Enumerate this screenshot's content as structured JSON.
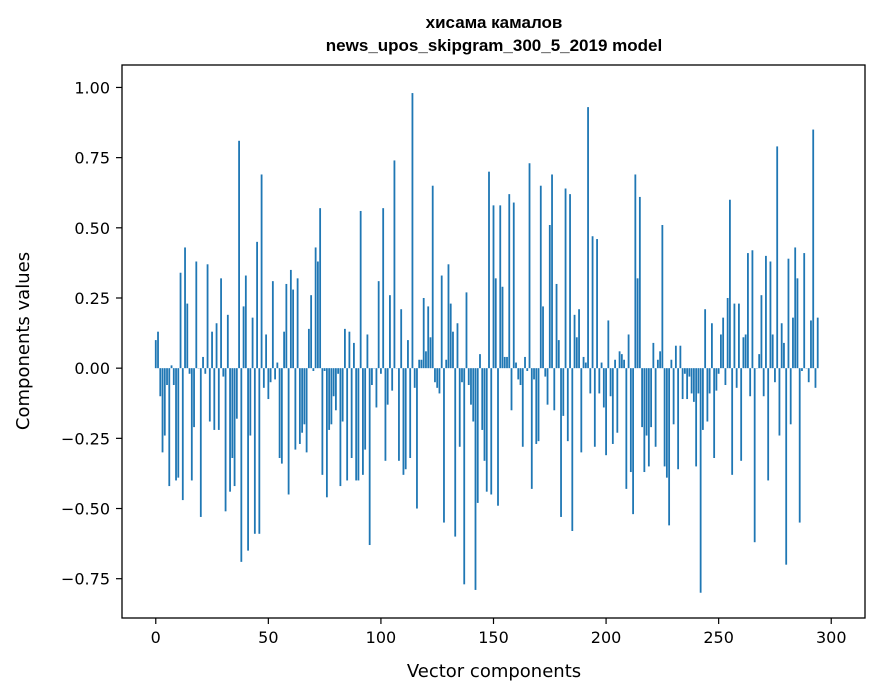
{
  "chart_data": {
    "type": "bar",
    "title": "хисама камалов",
    "subtitle": "news_upos_skipgram_300_5_2019 model",
    "xlabel": "Vector components",
    "ylabel": "Components values",
    "xlim": [
      -15,
      315
    ],
    "ylim": [
      -0.89,
      1.08
    ],
    "xticks": [
      0,
      50,
      100,
      150,
      200,
      250,
      300
    ],
    "xtick_labels": [
      "0",
      "50",
      "100",
      "150",
      "200",
      "250",
      "300"
    ],
    "yticks": [
      -0.75,
      -0.5,
      -0.25,
      0.0,
      0.25,
      0.5,
      0.75,
      1.0
    ],
    "ytick_labels": [
      "−0.75",
      "−0.50",
      "−0.25",
      "0.00",
      "0.25",
      "0.50",
      "0.75",
      "1.00"
    ],
    "grid": false,
    "bar_color": "#1f77b4",
    "x_start": 0,
    "values": [
      0.1,
      0.13,
      -0.1,
      -0.3,
      -0.24,
      -0.06,
      -0.42,
      0.01,
      -0.06,
      -0.4,
      -0.39,
      0.34,
      -0.47,
      0.43,
      0.23,
      -0.02,
      -0.4,
      -0.21,
      0.38,
      0.0,
      -0.53,
      0.04,
      -0.02,
      0.37,
      -0.19,
      0.13,
      -0.22,
      0.16,
      -0.22,
      0.32,
      -0.03,
      -0.51,
      0.19,
      -0.44,
      -0.32,
      -0.42,
      -0.18,
      0.81,
      -0.69,
      0.22,
      0.33,
      -0.65,
      -0.24,
      0.18,
      -0.59,
      0.45,
      -0.59,
      0.69,
      -0.07,
      0.12,
      -0.11,
      -0.05,
      0.31,
      -0.04,
      0.02,
      -0.32,
      -0.34,
      0.13,
      0.3,
      -0.45,
      0.35,
      0.28,
      -0.29,
      0.32,
      -0.27,
      -0.23,
      -0.2,
      -0.3,
      0.14,
      0.26,
      -0.01,
      0.43,
      0.38,
      0.57,
      -0.38,
      -0.01,
      -0.46,
      -0.22,
      -0.2,
      -0.1,
      -0.15,
      -0.02,
      -0.42,
      -0.19,
      0.14,
      -0.4,
      0.13,
      -0.32,
      0.09,
      -0.4,
      -0.4,
      0.56,
      -0.38,
      -0.29,
      0.12,
      -0.63,
      -0.06,
      0.0,
      -0.14,
      0.31,
      -0.02,
      0.57,
      -0.33,
      -0.13,
      0.26,
      -0.08,
      0.74,
      0.0,
      -0.33,
      0.21,
      -0.38,
      -0.36,
      0.1,
      -0.32,
      0.98,
      -0.07,
      -0.5,
      0.03,
      0.03,
      0.25,
      0.06,
      0.22,
      0.11,
      0.65,
      -0.05,
      -0.07,
      -0.09,
      0.33,
      -0.55,
      0.03,
      0.37,
      0.23,
      0.13,
      -0.6,
      0.16,
      -0.28,
      -0.05,
      -0.77,
      0.27,
      -0.06,
      -0.13,
      -0.19,
      -0.79,
      -0.48,
      0.05,
      -0.22,
      -0.33,
      -0.44,
      0.7,
      -0.45,
      0.58,
      0.32,
      -0.49,
      0.58,
      0.29,
      0.04,
      0.04,
      0.62,
      -0.15,
      0.59,
      0.02,
      -0.04,
      -0.06,
      -0.28,
      0.04,
      -0.01,
      0.73,
      -0.43,
      -0.04,
      -0.27,
      -0.26,
      0.65,
      0.22,
      -0.03,
      -0.13,
      0.51,
      0.69,
      -0.15,
      0.3,
      0.1,
      -0.53,
      -0.17,
      0.64,
      -0.26,
      0.62,
      -0.58,
      0.19,
      0.11,
      0.21,
      -0.3,
      0.04,
      0.02,
      0.93,
      -0.09,
      0.47,
      -0.28,
      0.46,
      -0.09,
      0.02,
      -0.14,
      -0.31,
      0.17,
      -0.1,
      -0.27,
      0.03,
      -0.23,
      0.06,
      0.05,
      0.03,
      -0.43,
      0.12,
      -0.37,
      -0.52,
      0.69,
      0.32,
      0.61,
      -0.21,
      -0.37,
      -0.24,
      -0.35,
      -0.21,
      0.09,
      -0.28,
      0.03,
      0.06,
      0.51,
      -0.35,
      -0.39,
      -0.56,
      0.03,
      -0.2,
      0.08,
      -0.36,
      0.08,
      -0.11,
      -0.02,
      -0.11,
      -0.03,
      -0.09,
      -0.12,
      -0.35,
      -0.09,
      -0.8,
      -0.22,
      0.21,
      -0.19,
      -0.09,
      0.16,
      -0.32,
      -0.08,
      -0.02,
      0.12,
      0.18,
      -0.06,
      0.25,
      0.6,
      -0.38,
      0.23,
      -0.07,
      0.23,
      -0.33,
      0.11,
      0.12,
      0.41,
      -0.1,
      0.42,
      -0.62,
      0.0,
      0.05,
      0.26,
      -0.1,
      0.4,
      -0.4,
      0.38,
      0.12,
      -0.05,
      0.79,
      -0.24,
      0.16,
      0.09,
      -0.7,
      0.39,
      -0.2,
      0.18,
      0.43,
      0.32,
      -0.55,
      -0.01,
      0.41,
      0.0,
      -0.05,
      0.17,
      0.85,
      -0.07,
      0.18
    ]
  }
}
